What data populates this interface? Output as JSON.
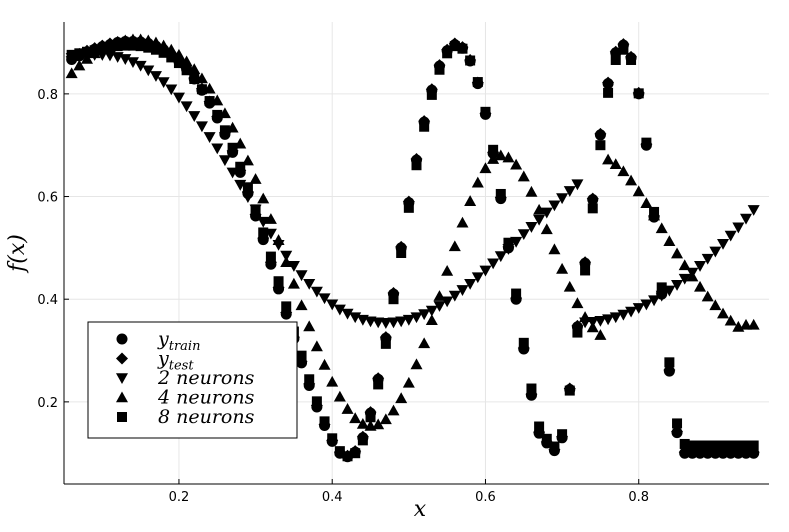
{
  "chart_data": {
    "type": "scatter",
    "xlabel": "x",
    "ylabel": "f(x)",
    "xlim": [
      0.05,
      0.97
    ],
    "ylim": [
      0.04,
      0.94
    ],
    "xticks": [
      0.2,
      0.4,
      0.6,
      0.8
    ],
    "yticks": [
      0.2,
      0.4,
      0.6,
      0.8
    ],
    "xtick_labels": [
      "0.2",
      "0.4",
      "0.6",
      "0.8"
    ],
    "ytick_labels": [
      "0.2",
      "0.4",
      "0.6",
      "0.8"
    ],
    "grid": true,
    "legend_position": "bottom-left",
    "marker_color": "#000000",
    "x": [
      0.06,
      0.07,
      0.08,
      0.09,
      0.1,
      0.11,
      0.12,
      0.13,
      0.14,
      0.15,
      0.16,
      0.17,
      0.18,
      0.19,
      0.2,
      0.21,
      0.22,
      0.23,
      0.24,
      0.25,
      0.26,
      0.27,
      0.28,
      0.29,
      0.3,
      0.31,
      0.32,
      0.33,
      0.34,
      0.35,
      0.36,
      0.37,
      0.38,
      0.39,
      0.4,
      0.41,
      0.42,
      0.43,
      0.44,
      0.45,
      0.46,
      0.47,
      0.48,
      0.49,
      0.5,
      0.51,
      0.52,
      0.53,
      0.54,
      0.55,
      0.56,
      0.57,
      0.58,
      0.59,
      0.6,
      0.61,
      0.62,
      0.63,
      0.64,
      0.65,
      0.66,
      0.67,
      0.68,
      0.69,
      0.7,
      0.71,
      0.72,
      0.73,
      0.74,
      0.75,
      0.76,
      0.77,
      0.78,
      0.79,
      0.8,
      0.81,
      0.82,
      0.83,
      0.84,
      0.85,
      0.86,
      0.87,
      0.88,
      0.89,
      0.9,
      0.91,
      0.92,
      0.93,
      0.94,
      0.95
    ],
    "series": [
      {
        "legend_label": "y",
        "legend_subscript": "train",
        "marker": "circle",
        "values": [
          0.867,
          0.874,
          0.881,
          0.887,
          0.892,
          0.896,
          0.9,
          0.902,
          0.902,
          0.901,
          0.898,
          0.893,
          0.886,
          0.876,
          0.863,
          0.848,
          0.829,
          0.807,
          0.782,
          0.753,
          0.721,
          0.686,
          0.647,
          0.606,
          0.562,
          0.516,
          0.468,
          0.42,
          0.371,
          0.323,
          0.276,
          0.232,
          0.19,
          0.154,
          0.123,
          0.1,
          0.093,
          0.102,
          0.13,
          0.178,
          0.244,
          0.324,
          0.41,
          0.5,
          0.588,
          0.671,
          0.745,
          0.807,
          0.854,
          0.884,
          0.896,
          0.889,
          0.864,
          0.82,
          0.76,
          0.684,
          0.596,
          0.5,
          0.4,
          0.303,
          0.213,
          0.139,
          0.12,
          0.105,
          0.13,
          0.224,
          0.346,
          0.47,
          0.594,
          0.72,
          0.82,
          0.88,
          0.895,
          0.87,
          0.8,
          0.7,
          0.56,
          0.41,
          0.26,
          0.14,
          0.1,
          0.1,
          0.1,
          0.1,
          0.1,
          0.1,
          0.1,
          0.1,
          0.1,
          0.1
        ]
      },
      {
        "legend_label": "y",
        "legend_subscript": "test",
        "marker": "diamond",
        "values": [
          0.872,
          0.878,
          0.884,
          0.889,
          0.894,
          0.898,
          0.901,
          0.903,
          0.903,
          0.902,
          0.899,
          0.894,
          0.887,
          0.877,
          0.865,
          0.85,
          0.831,
          0.81,
          0.785,
          0.756,
          0.724,
          0.689,
          0.651,
          0.609,
          0.565,
          0.519,
          0.472,
          0.423,
          0.374,
          0.326,
          0.279,
          0.235,
          0.193,
          0.156,
          0.125,
          0.102,
          0.095,
          0.104,
          0.132,
          0.18,
          0.246,
          0.326,
          0.412,
          0.502,
          0.59,
          0.673,
          0.747,
          0.809,
          0.856,
          0.886,
          0.898,
          0.891,
          0.866,
          0.822,
          0.762,
          0.686,
          0.598,
          0.502,
          0.402,
          0.305,
          0.215,
          0.141,
          0.122,
          0.107,
          0.132,
          0.226,
          0.348,
          0.472,
          0.596,
          0.722,
          0.822,
          0.882,
          0.897,
          0.872,
          0.802,
          0.702,
          0.562,
          0.412,
          0.262,
          0.142,
          0.102,
          0.102,
          0.102,
          0.102,
          0.102,
          0.102,
          0.102,
          0.102,
          0.102,
          0.102
        ]
      },
      {
        "legend_label": "2 neurons",
        "legend_subscript": "",
        "marker": "triangle-down",
        "values": [
          0.87,
          0.873,
          0.875,
          0.876,
          0.876,
          0.875,
          0.872,
          0.868,
          0.862,
          0.855,
          0.846,
          0.835,
          0.823,
          0.809,
          0.793,
          0.776,
          0.757,
          0.737,
          0.716,
          0.694,
          0.671,
          0.647,
          0.623,
          0.599,
          0.575,
          0.551,
          0.528,
          0.506,
          0.485,
          0.465,
          0.447,
          0.43,
          0.415,
          0.402,
          0.39,
          0.38,
          0.372,
          0.365,
          0.36,
          0.357,
          0.355,
          0.354,
          0.355,
          0.357,
          0.36,
          0.365,
          0.371,
          0.378,
          0.387,
          0.396,
          0.407,
          0.418,
          0.43,
          0.443,
          0.456,
          0.47,
          0.484,
          0.498,
          0.512,
          0.527,
          0.541,
          0.555,
          0.569,
          0.583,
          0.597,
          0.611,
          0.624,
          0.355,
          0.356,
          0.358,
          0.361,
          0.365,
          0.37,
          0.376,
          0.383,
          0.39,
          0.398,
          0.407,
          0.417,
          0.428,
          0.44,
          0.452,
          0.465,
          0.479,
          0.493,
          0.508,
          0.524,
          0.54,
          0.557,
          0.574
        ]
      },
      {
        "legend_label": "4 neurons",
        "legend_subscript": "",
        "marker": "triangle-up",
        "values": [
          0.84,
          0.855,
          0.868,
          0.879,
          0.888,
          0.895,
          0.9,
          0.904,
          0.906,
          0.906,
          0.904,
          0.9,
          0.894,
          0.886,
          0.876,
          0.863,
          0.848,
          0.83,
          0.81,
          0.787,
          0.762,
          0.734,
          0.703,
          0.67,
          0.634,
          0.596,
          0.556,
          0.515,
          0.472,
          0.43,
          0.388,
          0.347,
          0.308,
          0.272,
          0.239,
          0.21,
          0.186,
          0.168,
          0.157,
          0.153,
          0.156,
          0.166,
          0.183,
          0.207,
          0.237,
          0.273,
          0.314,
          0.359,
          0.406,
          0.455,
          0.503,
          0.549,
          0.591,
          0.627,
          0.655,
          0.673,
          0.68,
          0.676,
          0.662,
          0.639,
          0.609,
          0.574,
          0.536,
          0.497,
          0.459,
          0.424,
          0.392,
          0.365,
          0.345,
          0.33,
          0.672,
          0.663,
          0.649,
          0.631,
          0.61,
          0.587,
          0.563,
          0.538,
          0.513,
          0.489,
          0.466,
          0.444,
          0.424,
          0.405,
          0.388,
          0.372,
          0.358,
          0.346,
          0.35,
          0.35
        ]
      },
      {
        "legend_label": "8 neurons",
        "legend_subscript": "",
        "marker": "square",
        "values": [
          0.876,
          0.879,
          0.882,
          0.885,
          0.888,
          0.891,
          0.893,
          0.894,
          0.894,
          0.893,
          0.89,
          0.886,
          0.88,
          0.871,
          0.86,
          0.846,
          0.829,
          0.809,
          0.786,
          0.759,
          0.729,
          0.695,
          0.658,
          0.618,
          0.575,
          0.53,
          0.483,
          0.435,
          0.386,
          0.337,
          0.29,
          0.244,
          0.201,
          0.162,
          0.129,
          0.104,
          0.094,
          0.1,
          0.125,
          0.17,
          0.234,
          0.313,
          0.4,
          0.49,
          0.578,
          0.661,
          0.736,
          0.798,
          0.847,
          0.879,
          0.893,
          0.888,
          0.865,
          0.823,
          0.765,
          0.691,
          0.605,
          0.51,
          0.411,
          0.315,
          0.226,
          0.152,
          0.128,
          0.113,
          0.137,
          0.222,
          0.335,
          0.456,
          0.577,
          0.7,
          0.802,
          0.866,
          0.886,
          0.866,
          0.801,
          0.705,
          0.57,
          0.423,
          0.277,
          0.158,
          0.118,
          0.115,
          0.115,
          0.115,
          0.115,
          0.115,
          0.115,
          0.115,
          0.115,
          0.115
        ]
      }
    ]
  }
}
